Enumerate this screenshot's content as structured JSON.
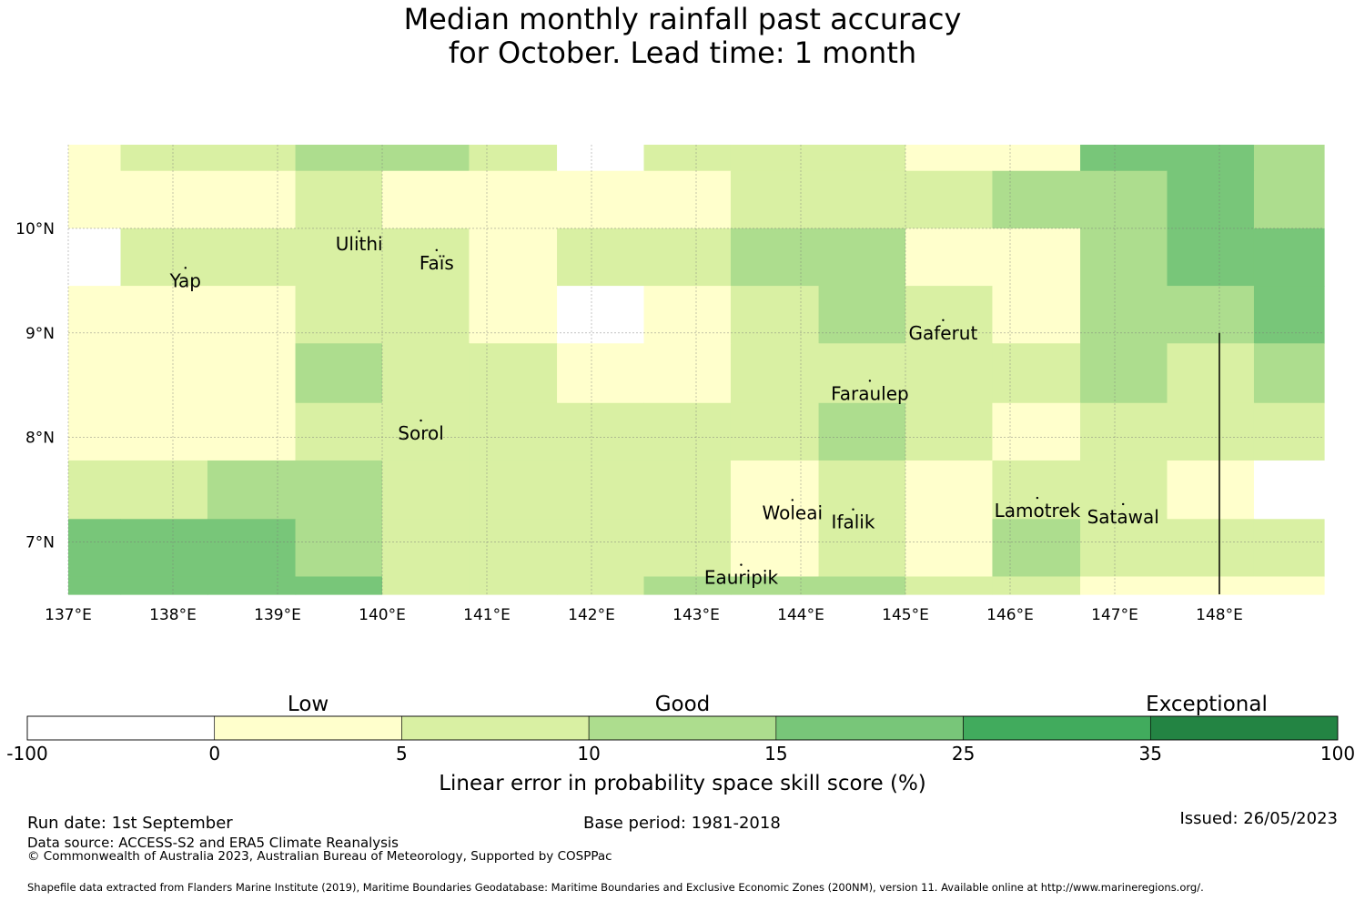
{
  "title": {
    "line1": "Median monthly rainfall past accuracy",
    "line2": "for October. Lead time: 1 month"
  },
  "map": {
    "lon_range": [
      137.0,
      149.0
    ],
    "lat_range": [
      6.5,
      10.8
    ],
    "x_ticks": [
      {
        "value": 137,
        "label": "137°E"
      },
      {
        "value": 138,
        "label": "138°E"
      },
      {
        "value": 139,
        "label": "139°E"
      },
      {
        "value": 140,
        "label": "140°E"
      },
      {
        "value": 141,
        "label": "141°E"
      },
      {
        "value": 142,
        "label": "142°E"
      },
      {
        "value": 143,
        "label": "143°E"
      },
      {
        "value": 144,
        "label": "144°E"
      },
      {
        "value": 145,
        "label": "145°E"
      },
      {
        "value": 146,
        "label": "146°E"
      },
      {
        "value": 147,
        "label": "147°E"
      },
      {
        "value": 148,
        "label": "148°E"
      }
    ],
    "y_ticks": [
      {
        "value": 10,
        "label": "10°N"
      },
      {
        "value": 9,
        "label": "9°N"
      },
      {
        "value": 8,
        "label": "8°N"
      },
      {
        "value": 7,
        "label": "7°N"
      }
    ],
    "grid_lon_edges": [
      137.0,
      137.5,
      138.33,
      139.17,
      140.0,
      140.83,
      141.67,
      142.5,
      143.33,
      144.17,
      145.0,
      145.83,
      146.67,
      147.5,
      148.33,
      149.0
    ],
    "grid_lat_edges": [
      10.8,
      10.55,
      10.0,
      9.45,
      8.9,
      8.33,
      7.78,
      7.22,
      6.67,
      6.5
    ],
    "skill_classes": [
      [
        1,
        2,
        2,
        3,
        3,
        2,
        0,
        2,
        2,
        2,
        1,
        1,
        4,
        4,
        3
      ],
      [
        1,
        1,
        1,
        2,
        1,
        1,
        1,
        1,
        2,
        2,
        2,
        3,
        3,
        4,
        3
      ],
      [
        0,
        2,
        2,
        2,
        2,
        1,
        2,
        2,
        3,
        3,
        1,
        1,
        3,
        4,
        4
      ],
      [
        1,
        1,
        1,
        2,
        2,
        1,
        0,
        1,
        2,
        3,
        2,
        1,
        3,
        3,
        4
      ],
      [
        1,
        1,
        1,
        3,
        2,
        2,
        1,
        1,
        2,
        2,
        2,
        2,
        3,
        2,
        3
      ],
      [
        1,
        1,
        1,
        2,
        2,
        2,
        2,
        2,
        2,
        3,
        2,
        1,
        2,
        2,
        2
      ],
      [
        2,
        2,
        3,
        3,
        2,
        2,
        2,
        2,
        1,
        2,
        1,
        2,
        2,
        1,
        0
      ],
      [
        4,
        4,
        4,
        3,
        2,
        2,
        2,
        2,
        1,
        2,
        1,
        3,
        2,
        2,
        2
      ],
      [
        4,
        4,
        4,
        4,
        2,
        2,
        2,
        3,
        3,
        3,
        2,
        2,
        1,
        1,
        1
      ]
    ],
    "islands": [
      {
        "name": "Yap",
        "lon": 138.12,
        "lat": 9.5
      },
      {
        "name": "Ulithi",
        "lon": 139.78,
        "lat": 9.85
      },
      {
        "name": "Faïs",
        "lon": 140.52,
        "lat": 9.67
      },
      {
        "name": "Gaferut",
        "lon": 145.36,
        "lat": 9.0
      },
      {
        "name": "Faraulep",
        "lon": 144.66,
        "lat": 8.42
      },
      {
        "name": "Sorol",
        "lon": 140.37,
        "lat": 8.04
      },
      {
        "name": "Woleai",
        "lon": 143.92,
        "lat": 7.28
      },
      {
        "name": "Ifalik",
        "lon": 144.5,
        "lat": 7.19
      },
      {
        "name": "Lamotrek",
        "lon": 146.26,
        "lat": 7.3
      },
      {
        "name": "Satawal",
        "lon": 147.08,
        "lat": 7.24
      },
      {
        "name": "Eauripik",
        "lon": 143.43,
        "lat": 6.66
      }
    ],
    "boundary_line": {
      "lon": 148.0,
      "lat_from": 9.0,
      "lat_to": 6.5
    }
  },
  "legend": {
    "boundaries": [
      "-100",
      "0",
      "5",
      "10",
      "15",
      "25",
      "35",
      "100"
    ],
    "colors": [
      "#ffffff",
      "#ffffcc",
      "#d9f0a3",
      "#addd8e",
      "#78c679",
      "#41ab5d",
      "#238443"
    ],
    "categories": [
      {
        "label": "Low",
        "position": 1.5
      },
      {
        "label": "Good",
        "position": 3.5
      },
      {
        "label": "Exceptional",
        "position": 6.3
      }
    ],
    "axis_label": "Linear error in probability space skill score (%)"
  },
  "footer": {
    "run_date": "Run date: 1st September",
    "base_period": "Base period: 1981-2018",
    "issued": "Issued: 26/05/2023",
    "data_source": "Data source: ACCESS-S2 and ERA5 Climate Reanalysis",
    "copyright": "© Commonwealth of Australia 2023, Australian Bureau of Meteorology, Supported by COSPPac",
    "shapefile": "Shapefile data extracted from Flanders Marine Institute (2019), Maritime Boundaries Geodatabase: Maritime Boundaries and Exclusive Economic Zones (200NM), version 11. Available online at http://www.marineregions.org/."
  }
}
